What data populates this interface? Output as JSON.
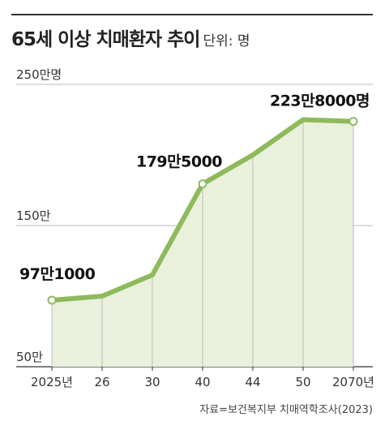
{
  "header": {
    "title": "65세 이상 치매환자 추이",
    "unit": "단위: 명"
  },
  "source": "자료=보건복지부 치매역학조사(2023)",
  "colors": {
    "line": "#8fba5c",
    "area": "#e9f1dd",
    "grid": "#bbbbbb",
    "marker_fill": "#ffffff"
  },
  "chart_data": {
    "type": "area",
    "title": "65세 이상 치매환자 추이",
    "unit_label": "단위: 명",
    "x_tick_labels": [
      "2025년",
      "26",
      "30",
      "40",
      "44",
      "50",
      "2070년"
    ],
    "x": [
      2025,
      2026,
      2030,
      2040,
      2044,
      2050,
      2070
    ],
    "series": [
      {
        "values": [
          971000,
          1000000,
          1150000,
          1795000,
          2000000,
          2250000,
          2238000
        ]
      }
    ],
    "y_ticks": [
      {
        "value": 500000,
        "label": "50만"
      },
      {
        "value": 1500000,
        "label": "150만"
      },
      {
        "value": 2500000,
        "label": "250만명"
      }
    ],
    "ylim": [
      500000,
      2500000
    ],
    "grid": true,
    "data_labels": [
      {
        "index": 0,
        "text": "97만1000"
      },
      {
        "index": 3,
        "text": "179만5000"
      },
      {
        "index": 6,
        "text": "223만8000명"
      }
    ]
  }
}
